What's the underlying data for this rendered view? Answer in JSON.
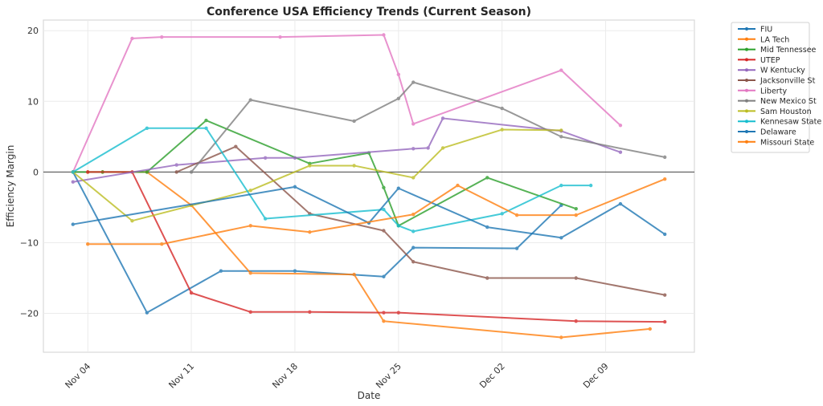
{
  "chart_data": {
    "type": "line",
    "title": "Conference USA Efficiency Trends (Current Season)",
    "xlabel": "Date",
    "ylabel": "Efficiency Margin",
    "x_start": "Nov 01",
    "xlim_days": [
      0,
      44
    ],
    "ylim": [
      -25.5,
      21.5
    ],
    "yticks": [
      -20,
      -10,
      0,
      10,
      20
    ],
    "ytick_labels": [
      "−20",
      "−10",
      "0",
      "10",
      "20"
    ],
    "xticks_days": [
      3,
      10,
      17,
      24,
      31,
      38
    ],
    "xtick_labels": [
      "Nov 04",
      "Nov 11",
      "Nov 18",
      "Nov 25",
      "Dec 02",
      "Dec 09"
    ],
    "grid": true,
    "zero_line": true,
    "legend_position": "outside-top-right",
    "series": [
      {
        "name": "FIU",
        "color": "#1f77b4",
        "points": [
          [
            "Nov 03",
            0
          ],
          [
            "Nov 08",
            -19.9
          ],
          [
            "Nov 13",
            -14.0
          ],
          [
            "Nov 18",
            -14.0
          ],
          [
            "Nov 24",
            -14.8
          ],
          [
            "Nov 26",
            -10.7
          ],
          [
            "Dec 03",
            -10.8
          ],
          [
            "Dec 06",
            -4.7
          ]
        ]
      },
      {
        "name": "LA Tech",
        "color": "#ff7f0e",
        "points": [
          [
            "Nov 04",
            0
          ],
          [
            "Nov 05",
            0
          ],
          [
            "Nov 08",
            0
          ],
          [
            "Nov 11",
            -4.7
          ],
          [
            "Nov 15",
            -14.3
          ],
          [
            "Nov 22",
            -14.5
          ],
          [
            "Nov 24",
            -21.1
          ],
          [
            "Dec 06",
            -23.4
          ],
          [
            "Dec 12",
            -22.2
          ]
        ]
      },
      {
        "name": "Mid Tennessee",
        "color": "#2ca02c",
        "points": [
          [
            "Nov 03",
            0
          ],
          [
            "Nov 05",
            0
          ],
          [
            "Nov 08",
            0
          ],
          [
            "Nov 12",
            7.3
          ],
          [
            "Nov 19",
            1.2
          ],
          [
            "Nov 23",
            2.7
          ],
          [
            "Nov 24",
            -2.2
          ],
          [
            "Nov 25",
            -7.6
          ],
          [
            "Dec 01",
            -0.8
          ],
          [
            "Dec 07",
            -5.2
          ]
        ]
      },
      {
        "name": "UTEP",
        "color": "#d62728",
        "points": [
          [
            "Nov 04",
            0
          ],
          [
            "Nov 07",
            0
          ],
          [
            "Nov 11",
            -17.1
          ],
          [
            "Nov 15",
            -19.8
          ],
          [
            "Nov 19",
            -19.8
          ],
          [
            "Nov 24",
            -19.9
          ],
          [
            "Nov 25",
            -19.9
          ],
          [
            "Dec 07",
            -21.1
          ],
          [
            "Dec 13",
            -21.2
          ]
        ]
      },
      {
        "name": "W Kentucky",
        "color": "#9467bd",
        "points": [
          [
            "Nov 03",
            -1.4
          ],
          [
            "Nov 10",
            1.0
          ],
          [
            "Nov 16",
            2.0
          ],
          [
            "Nov 18",
            2.0
          ],
          [
            "Nov 26",
            3.3
          ],
          [
            "Nov 27",
            3.4
          ],
          [
            "Nov 28",
            7.6
          ],
          [
            "Dec 06",
            5.8
          ],
          [
            "Dec 10",
            2.8
          ]
        ]
      },
      {
        "name": "Jacksonville St",
        "color": "#8c564b",
        "points": [
          [
            "Nov 10",
            0
          ],
          [
            "Nov 14",
            3.6
          ],
          [
            "Nov 19",
            -5.9
          ],
          [
            "Nov 24",
            -8.3
          ],
          [
            "Nov 26",
            -12.7
          ],
          [
            "Dec 01",
            -15.0
          ],
          [
            "Dec 07",
            -15.0
          ],
          [
            "Dec 13",
            -17.4
          ]
        ]
      },
      {
        "name": "Liberty",
        "color": "#e377c2",
        "points": [
          [
            "Nov 03",
            0
          ],
          [
            "Nov 07",
            18.9
          ],
          [
            "Nov 09",
            19.1
          ],
          [
            "Nov 17",
            19.1
          ],
          [
            "Nov 24",
            19.4
          ],
          [
            "Nov 25",
            13.8
          ],
          [
            "Nov 26",
            6.8
          ],
          [
            "Dec 06",
            14.4
          ],
          [
            "Dec 10",
            6.6
          ]
        ]
      },
      {
        "name": "New Mexico St",
        "color": "#7f7f7f",
        "points": [
          [
            "Nov 11",
            0
          ],
          [
            "Nov 15",
            10.2
          ],
          [
            "Nov 22",
            7.2
          ],
          [
            "Nov 25",
            10.4
          ],
          [
            "Nov 26",
            12.7
          ],
          [
            "Dec 02",
            9.0
          ],
          [
            "Dec 06",
            5.0
          ],
          [
            "Dec 13",
            2.1
          ]
        ]
      },
      {
        "name": "Sam Houston",
        "color": "#bcbd22",
        "points": [
          [
            "Nov 03",
            0
          ],
          [
            "Nov 07",
            -6.9
          ],
          [
            "Nov 15",
            -2.6
          ],
          [
            "Nov 19",
            0.9
          ],
          [
            "Nov 22",
            0.9
          ],
          [
            "Nov 26",
            -0.8
          ],
          [
            "Nov 28",
            3.4
          ],
          [
            "Dec 02",
            6.0
          ],
          [
            "Dec 06",
            5.9
          ]
        ]
      },
      {
        "name": "Kennesaw State",
        "color": "#17becf",
        "points": [
          [
            "Nov 03",
            0
          ],
          [
            "Nov 08",
            6.2
          ],
          [
            "Nov 12",
            6.2
          ],
          [
            "Nov 16",
            -6.6
          ],
          [
            "Nov 24",
            -5.3
          ],
          [
            "Nov 25",
            -7.6
          ],
          [
            "Nov 26",
            -8.4
          ],
          [
            "Dec 02",
            -5.9
          ],
          [
            "Dec 06",
            -1.9
          ],
          [
            "Dec 08",
            -1.9
          ]
        ]
      },
      {
        "name": "Delaware",
        "color": "#1f77b4",
        "points": [
          [
            "Nov 03",
            -7.4
          ],
          [
            "Nov 18",
            -2.1
          ],
          [
            "Nov 23",
            -7.2
          ],
          [
            "Nov 25",
            -2.3
          ],
          [
            "Dec 01",
            -7.8
          ],
          [
            "Dec 06",
            -9.3
          ],
          [
            "Dec 10",
            -4.5
          ],
          [
            "Dec 13",
            -8.8
          ]
        ]
      },
      {
        "name": "Missouri State",
        "color": "#ff7f0e",
        "points": [
          [
            "Nov 04",
            -10.2
          ],
          [
            "Nov 09",
            -10.2
          ],
          [
            "Nov 15",
            -7.6
          ],
          [
            "Nov 19",
            -8.5
          ],
          [
            "Nov 26",
            -6.0
          ],
          [
            "Nov 29",
            -1.9
          ],
          [
            "Dec 03",
            -6.1
          ],
          [
            "Dec 07",
            -6.1
          ],
          [
            "Dec 13",
            -1.0
          ]
        ]
      }
    ]
  }
}
